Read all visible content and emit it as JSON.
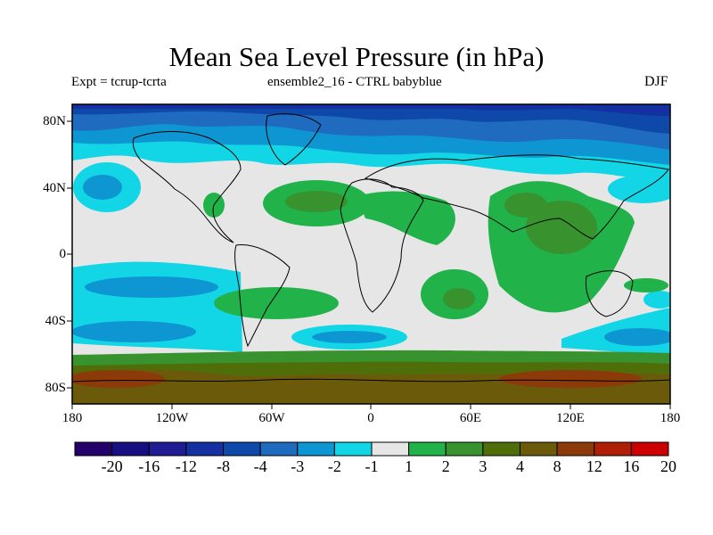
{
  "title": "Mean Sea Level Pressure (in hPa)",
  "subtitle_left": "Expt = tcrup-tcrta",
  "subtitle_center": "ensemble2_16 - CTRL babyblue",
  "subtitle_right": "DJF",
  "lat_labels": [
    "80N",
    "40N",
    "0",
    "40S",
    "80S"
  ],
  "lon_labels": [
    "180",
    "120W",
    "60W",
    "0",
    "60E",
    "120E",
    "180"
  ],
  "colorbar": {
    "levels": [
      "-20",
      "-16",
      "-12",
      "-8",
      "-4",
      "-3",
      "-2",
      "-1",
      "1",
      "2",
      "3",
      "4",
      "8",
      "12",
      "16",
      "20"
    ],
    "colors": [
      "#24006a",
      "#170e82",
      "#1f1c94",
      "#1530a0",
      "#0e48a8",
      "#1f6bc0",
      "#0e96d2",
      "#12d6e6",
      "#e6e6e6",
      "#22b24a",
      "#38922e",
      "#4f6e0a",
      "#6b5a0a",
      "#8c3a0a",
      "#b01e08",
      "#cc0000"
    ]
  },
  "field": {
    "high_latitude_north": "-4",
    "high_latitude_south": "4",
    "tropical_pacific": "-2",
    "africa_indian_ocean": "2",
    "antarctica": "8"
  }
}
